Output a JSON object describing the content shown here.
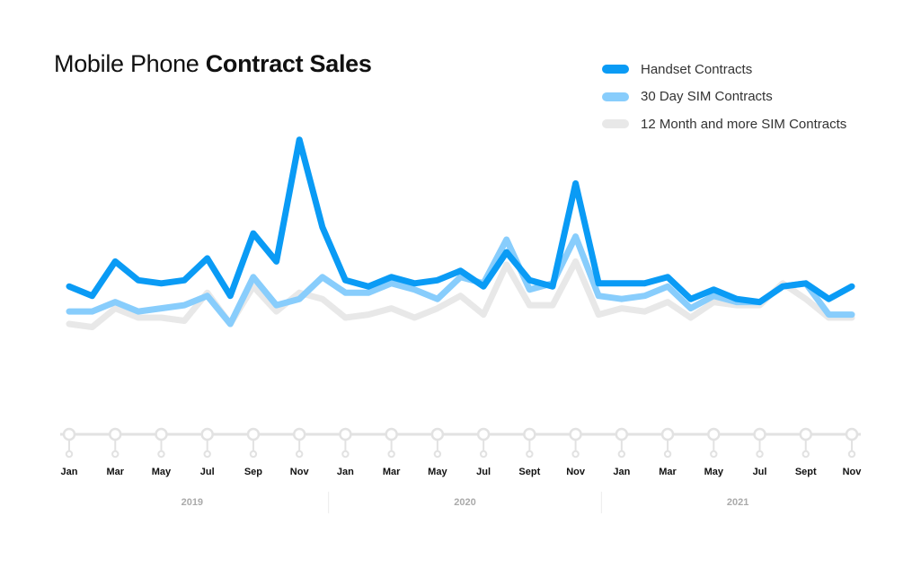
{
  "title": {
    "light": "Mobile Phone",
    "bold": "Contract Sales"
  },
  "legend": [
    {
      "label": "Handset Contracts",
      "color": "#0a9bf5"
    },
    {
      "label": "30 Day SIM Contracts",
      "color": "#88cdfc"
    },
    {
      "label": "12 Month and more SIM Contracts",
      "color": "#e8e8e8"
    }
  ],
  "chart_data": {
    "type": "line",
    "grid": false,
    "legend_position": "top-right",
    "x": [
      "Jan 2019",
      "Feb 2019",
      "Mar 2019",
      "Apr 2019",
      "May 2019",
      "Jun 2019",
      "Jul 2019",
      "Aug 2019",
      "Sep 2019",
      "Oct 2019",
      "Nov 2019",
      "Dec 2019",
      "Jan 2020",
      "Feb 2020",
      "Mar 2020",
      "Apr 2020",
      "May 2020",
      "Jun 2020",
      "Jul 2020",
      "Aug 2020",
      "Sep 2020",
      "Oct 2020",
      "Nov 2020",
      "Dec 2020",
      "Jan 2021",
      "Feb 2021",
      "Mar 2021",
      "Apr 2021",
      "May 2021",
      "Jun 2021",
      "Jul 2021",
      "Aug 2021",
      "Sep 2021",
      "Oct 2021",
      "Nov 2021"
    ],
    "tick_labels": [
      "Jan",
      "Mar",
      "May",
      "Jul",
      "Sep",
      "Nov",
      "Jan",
      "Mar",
      "May",
      "Jul",
      "Sept",
      "Nov",
      "Jan",
      "Mar",
      "May",
      "Jul",
      "Sept",
      "Nov"
    ],
    "year_labels": [
      "2019",
      "2020",
      "2021"
    ],
    "ylim": [
      0,
      100
    ],
    "series": [
      {
        "name": "Handset Contracts",
        "color": "#0a9bf5",
        "values": [
          37,
          34,
          45,
          39,
          38,
          39,
          46,
          34,
          54,
          45,
          84,
          56,
          39,
          37,
          40,
          38,
          39,
          42,
          37,
          48,
          39,
          37,
          70,
          38,
          38,
          38,
          40,
          33,
          36,
          33,
          32,
          37,
          38,
          33,
          37
        ]
      },
      {
        "name": "30 Day SIM Contracts",
        "color": "#88cdfc",
        "values": [
          29,
          29,
          32,
          29,
          30,
          31,
          34,
          25,
          40,
          31,
          33,
          40,
          35,
          35,
          38,
          36,
          33,
          40,
          38,
          52,
          36,
          38,
          53,
          34,
          33,
          34,
          37,
          30,
          34,
          32,
          32,
          37,
          38,
          28,
          28
        ]
      },
      {
        "name": "12 Month and more SIM Contracts",
        "color": "#e8e8e8",
        "values": [
          25,
          24,
          30,
          27,
          27,
          26,
          35,
          25,
          37,
          29,
          35,
          33,
          27,
          28,
          30,
          27,
          30,
          34,
          28,
          44,
          31,
          31,
          45,
          28,
          30,
          29,
          32,
          27,
          32,
          31,
          31,
          38,
          33,
          27,
          27
        ]
      }
    ]
  }
}
